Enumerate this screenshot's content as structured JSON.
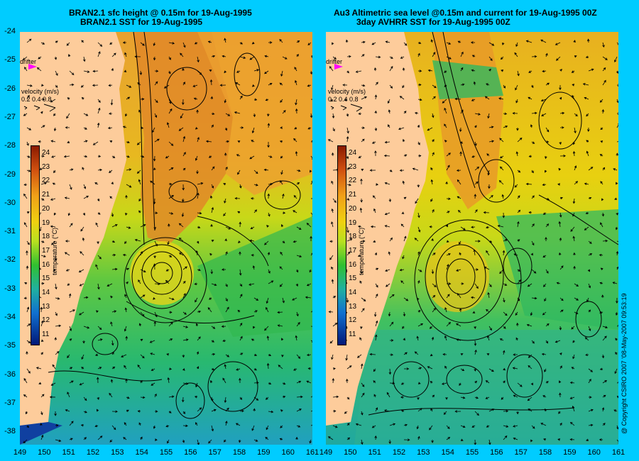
{
  "left_panel": {
    "title_line1": "BRAN2.1 sfc height @ 0.15m for 19-Aug-1995",
    "title_line2": "BRAN2.1 SST for 19-Aug-1995",
    "drifter_label": "drifter",
    "velocity_label": "velocity (m/s)",
    "velocity_scale": "0.2 0.4 0.8",
    "colorbar_unit": "temperature (°C)"
  },
  "right_panel": {
    "title_line1": "Au3 Altimetric sea level  @0.15m and current for 19-Aug-1995 00Z",
    "title_line2": "3day AVHRR SST for 19-Aug-1995 00Z",
    "drifter_label": "drifter",
    "velocity_label": "velocity (m/s)",
    "velocity_scale": "0.2 0.4 0.8",
    "colorbar_unit": "temperature (°C)"
  },
  "lat_labels": [
    "-24",
    "-25",
    "-26",
    "-27",
    "-28",
    "-29",
    "-30",
    "-31",
    "-32",
    "-33",
    "-34",
    "-35",
    "-36",
    "-37",
    "-38"
  ],
  "lon_labels_left": [
    "149",
    "150",
    "151",
    "152",
    "153",
    "154",
    "155",
    "156",
    "157",
    "158",
    "159",
    "160",
    "161"
  ],
  "lon_labels_right": [
    "149",
    "150",
    "151",
    "152",
    "153",
    "154",
    "155",
    "156",
    "157",
    "158",
    "159",
    "160",
    "161"
  ],
  "colorbar_ticks": [
    "24",
    "23",
    "22",
    "21",
    "20",
    "19",
    "18",
    "17",
    "16",
    "15",
    "14",
    "13",
    "12",
    "11"
  ],
  "copyright": "@ Copyright CSIRO 2007 '08-May-2007 09:53:19",
  "colors": {
    "background": "#00ccff",
    "land": "#fdcc9b",
    "warm": "#e88a20",
    "mid": "#e8d010",
    "cool": "#28b850"
  }
}
